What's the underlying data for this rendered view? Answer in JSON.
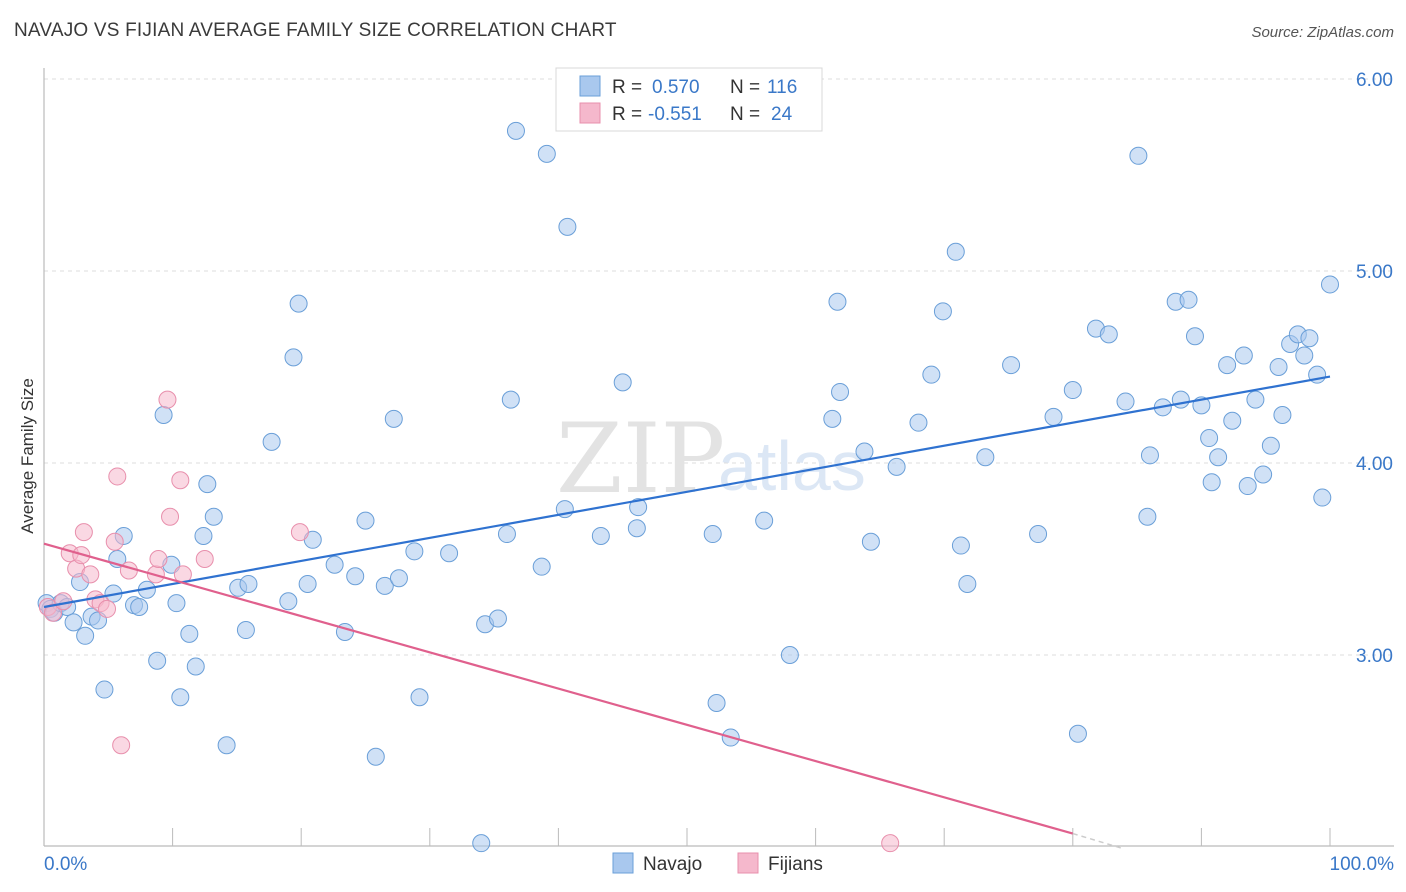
{
  "header": {
    "title": "NAVAJO VS FIJIAN AVERAGE FAMILY SIZE CORRELATION CHART",
    "source": "Source: ZipAtlas.com"
  },
  "watermark": {
    "zip": "ZIP",
    "atlas": "atlas"
  },
  "stats": {
    "r_label": "R =",
    "n_label": "N =",
    "rows": [
      {
        "series": "Navajo",
        "r": "0.570",
        "n": "116",
        "color": "#a9c8ee"
      },
      {
        "series": "Fijians",
        "r": "-0.551",
        "n": "24",
        "color": "#f5b8cc"
      }
    ]
  },
  "chart_data": {
    "type": "scatter",
    "title": "NAVAJO VS FIJIAN AVERAGE FAMILY SIZE CORRELATION CHART",
    "xlabel": "",
    "ylabel": "Average Family Size",
    "xlim": [
      0,
      100
    ],
    "ylim": [
      2.0,
      6.1
    ],
    "x_tick_labels": [
      "0.0%",
      "100.0%"
    ],
    "y_ticks": [
      3.0,
      4.0,
      5.0,
      6.0
    ],
    "y_tick_labels": [
      "3.00",
      "4.00",
      "5.00",
      "6.00"
    ],
    "grid": true,
    "legend_position": "bottom-center",
    "series": [
      {
        "name": "Navajo",
        "color": "#a9c8ee",
        "edge": "#6a9fd8",
        "line_color": "#2f72d0",
        "trend": {
          "x0": 0,
          "y0": 3.25,
          "x1": 100,
          "y1": 4.45
        },
        "points": [
          [
            0.2,
            3.27
          ],
          [
            0.5,
            3.24
          ],
          [
            0.8,
            3.22
          ],
          [
            1.3,
            3.27
          ],
          [
            1.8,
            3.25
          ],
          [
            2.3,
            3.17
          ],
          [
            2.8,
            3.38
          ],
          [
            3.2,
            3.1
          ],
          [
            3.7,
            3.2
          ],
          [
            4.2,
            3.18
          ],
          [
            4.7,
            2.82
          ],
          [
            5.4,
            3.32
          ],
          [
            5.7,
            3.5
          ],
          [
            6.2,
            3.62
          ],
          [
            7.0,
            3.26
          ],
          [
            7.4,
            3.25
          ],
          [
            8.0,
            3.34
          ],
          [
            8.8,
            2.97
          ],
          [
            9.3,
            4.25
          ],
          [
            9.9,
            3.47
          ],
          [
            10.3,
            3.27
          ],
          [
            10.6,
            2.78
          ],
          [
            11.3,
            3.11
          ],
          [
            11.8,
            2.94
          ],
          [
            12.4,
            3.62
          ],
          [
            12.7,
            3.89
          ],
          [
            13.2,
            3.72
          ],
          [
            14.2,
            2.53
          ],
          [
            15.1,
            3.35
          ],
          [
            15.9,
            3.37
          ],
          [
            15.7,
            3.13
          ],
          [
            17.7,
            4.11
          ],
          [
            19.0,
            3.28
          ],
          [
            19.4,
            4.55
          ],
          [
            19.8,
            4.83
          ],
          [
            20.5,
            3.37
          ],
          [
            20.9,
            3.6
          ],
          [
            22.6,
            3.47
          ],
          [
            23.4,
            3.12
          ],
          [
            24.2,
            3.41
          ],
          [
            25.0,
            3.7
          ],
          [
            25.8,
            2.47
          ],
          [
            26.5,
            3.36
          ],
          [
            27.2,
            4.23
          ],
          [
            27.6,
            3.4
          ],
          [
            28.8,
            3.54
          ],
          [
            29.2,
            2.78
          ],
          [
            31.5,
            3.53
          ],
          [
            34.0,
            2.02
          ],
          [
            34.3,
            3.16
          ],
          [
            35.3,
            3.19
          ],
          [
            36.0,
            3.63
          ],
          [
            36.3,
            4.33
          ],
          [
            36.7,
            5.73
          ],
          [
            38.7,
            3.46
          ],
          [
            39.1,
            5.61
          ],
          [
            40.5,
            3.76
          ],
          [
            40.7,
            5.23
          ],
          [
            43.3,
            3.62
          ],
          [
            45.0,
            4.42
          ],
          [
            46.1,
            3.66
          ],
          [
            46.2,
            3.77
          ],
          [
            52.0,
            3.63
          ],
          [
            52.3,
            2.75
          ],
          [
            53.4,
            2.57
          ],
          [
            56.0,
            3.7
          ],
          [
            58.0,
            3.0
          ],
          [
            61.3,
            4.23
          ],
          [
            61.7,
            4.84
          ],
          [
            61.9,
            4.37
          ],
          [
            63.8,
            4.06
          ],
          [
            64.3,
            3.59
          ],
          [
            66.3,
            3.98
          ],
          [
            68.0,
            4.21
          ],
          [
            69.0,
            4.46
          ],
          [
            69.9,
            4.79
          ],
          [
            70.9,
            5.1
          ],
          [
            71.3,
            3.57
          ],
          [
            71.8,
            3.37
          ],
          [
            73.2,
            4.03
          ],
          [
            75.2,
            4.51
          ],
          [
            77.3,
            3.63
          ],
          [
            78.5,
            4.24
          ],
          [
            80.0,
            4.38
          ],
          [
            80.4,
            2.59
          ],
          [
            81.8,
            4.7
          ],
          [
            82.8,
            4.67
          ],
          [
            84.1,
            4.32
          ],
          [
            85.1,
            5.6
          ],
          [
            85.8,
            3.72
          ],
          [
            86.0,
            4.04
          ],
          [
            87.0,
            4.29
          ],
          [
            88.0,
            4.84
          ],
          [
            88.4,
            4.33
          ],
          [
            89.0,
            4.85
          ],
          [
            89.5,
            4.66
          ],
          [
            90.0,
            4.3
          ],
          [
            90.6,
            4.13
          ],
          [
            90.8,
            3.9
          ],
          [
            91.3,
            4.03
          ],
          [
            92.0,
            4.51
          ],
          [
            92.4,
            4.22
          ],
          [
            93.3,
            4.56
          ],
          [
            93.6,
            3.88
          ],
          [
            94.2,
            4.33
          ],
          [
            94.8,
            3.94
          ],
          [
            95.4,
            4.09
          ],
          [
            96.0,
            4.5
          ],
          [
            96.3,
            4.25
          ],
          [
            96.9,
            4.62
          ],
          [
            97.5,
            4.67
          ],
          [
            98.0,
            4.56
          ],
          [
            98.4,
            4.65
          ],
          [
            99.0,
            4.46
          ],
          [
            99.4,
            3.82
          ],
          [
            100.0,
            4.93
          ]
        ]
      },
      {
        "name": "Fijians",
        "color": "#f5b8cc",
        "edge": "#e88fac",
        "line_color": "#e0608d",
        "trend": {
          "x0": 0,
          "y0": 3.58,
          "x1": 80,
          "y1": 2.07
        },
        "trend_dashed_to": {
          "x": 84,
          "y": 1.99
        },
        "points": [
          [
            0.3,
            3.25
          ],
          [
            0.7,
            3.22
          ],
          [
            1.5,
            3.28
          ],
          [
            2.0,
            3.53
          ],
          [
            2.5,
            3.45
          ],
          [
            2.9,
            3.52
          ],
          [
            3.1,
            3.64
          ],
          [
            3.6,
            3.42
          ],
          [
            4.0,
            3.29
          ],
          [
            4.4,
            3.27
          ],
          [
            4.9,
            3.24
          ],
          [
            5.5,
            3.59
          ],
          [
            6.0,
            2.53
          ],
          [
            6.6,
            3.44
          ],
          [
            5.7,
            3.93
          ],
          [
            8.7,
            3.42
          ],
          [
            8.9,
            3.5
          ],
          [
            9.6,
            4.33
          ],
          [
            9.8,
            3.72
          ],
          [
            10.6,
            3.91
          ],
          [
            10.8,
            3.42
          ],
          [
            12.5,
            3.5
          ],
          [
            19.9,
            3.64
          ],
          [
            65.8,
            2.02
          ]
        ]
      }
    ]
  }
}
